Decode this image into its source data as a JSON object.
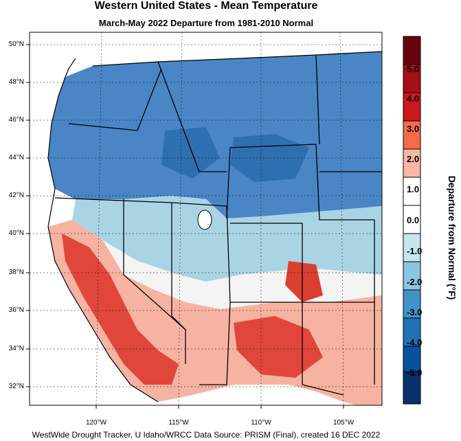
{
  "title": "Western United States - Mean Temperature",
  "subtitle": "March-May 2022  Departure from 1981-2010 Normal",
  "footer": "WestWide Drought Tracker, U Idaho/WRCC Data Source: PRISM (Final), created 16 DEC 2022",
  "lat_labels": [
    "50°N",
    "48°N",
    "46°N",
    "44°N",
    "42°N",
    "40°N",
    "38°N",
    "36°N",
    "34°N",
    "32°N"
  ],
  "lon_labels": [
    "120°W",
    "115°W",
    "110°W",
    "105°W"
  ],
  "colorbar": {
    "title": "Departure from Normal (°F)",
    "labels": [
      "5.0",
      "4.0",
      "3.0",
      "2.0",
      "1.0",
      "0.0",
      "-1.0",
      "-2.0",
      "-3.0",
      "-4.0",
      "-5.0"
    ],
    "colors": [
      "#67000d",
      "#a50f15",
      "#cb181d",
      "#fb6a4a",
      "#fcbba1",
      "#ffffff",
      "#ffffff",
      "#c6e6ec",
      "#9ecae1",
      "#4292c6",
      "#2171b5",
      "#08519c",
      "#08306b"
    ]
  },
  "map": {
    "ocean_color": "#ffffff",
    "cold_color": "#4a86c5",
    "cool_color": "#a9d4e4",
    "warm_color": "#f6b3a1",
    "hot_color": "#e0473a"
  }
}
